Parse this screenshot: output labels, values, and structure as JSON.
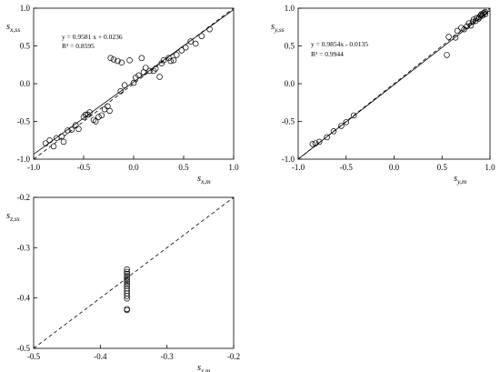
{
  "chart_data": [
    {
      "type": "scatter",
      "panel": "x",
      "xlabel": "s",
      "xlabel_sub": "x,m",
      "ylabel": "s",
      "ylabel_sub": "x,ss",
      "xlim": [
        -1.0,
        1.0
      ],
      "ylim": [
        -1.0,
        1.0
      ],
      "x_ticks": [
        "-1.0",
        "-0.5",
        "0.0",
        "0.5",
        "1.0"
      ],
      "y_ticks": [
        "-1.0",
        "-0.5",
        "0.0",
        "0.5",
        "1.0"
      ],
      "annotation_lines": [
        "y = 0.9581  x + 0.0236",
        "R² = 0.8595"
      ],
      "regression": {
        "slope": 0.9581,
        "intercept": 0.0236
      },
      "identity_line": true,
      "points": [
        [
          -0.88,
          -0.79
        ],
        [
          -0.84,
          -0.75
        ],
        [
          -0.8,
          -0.83
        ],
        [
          -0.77,
          -0.72
        ],
        [
          -0.72,
          -0.7
        ],
        [
          -0.7,
          -0.77
        ],
        [
          -0.66,
          -0.62
        ],
        [
          -0.62,
          -0.61
        ],
        [
          -0.58,
          -0.55
        ],
        [
          -0.55,
          -0.6
        ],
        [
          -0.5,
          -0.44
        ],
        [
          -0.48,
          -0.41
        ],
        [
          -0.46,
          -0.41
        ],
        [
          -0.44,
          -0.38
        ],
        [
          -0.4,
          -0.48
        ],
        [
          -0.38,
          -0.5
        ],
        [
          -0.35,
          -0.44
        ],
        [
          -0.32,
          -0.42
        ],
        [
          -0.29,
          -0.34
        ],
        [
          -0.26,
          -0.3
        ],
        [
          -0.24,
          -0.36
        ],
        [
          -0.23,
          0.34
        ],
        [
          -0.2,
          0.32
        ],
        [
          -0.16,
          0.3
        ],
        [
          -0.13,
          -0.1
        ],
        [
          -0.12,
          0.28
        ],
        [
          -0.09,
          -0.02
        ],
        [
          -0.04,
          0.31
        ],
        [
          0.0,
          0.01
        ],
        [
          0.02,
          0.08
        ],
        [
          0.05,
          0.11
        ],
        [
          0.08,
          0.34
        ],
        [
          0.1,
          0.15
        ],
        [
          0.12,
          0.21
        ],
        [
          0.16,
          0.17
        ],
        [
          0.2,
          0.17
        ],
        [
          0.22,
          0.2
        ],
        [
          0.26,
          0.09
        ],
        [
          0.28,
          0.27
        ],
        [
          0.3,
          0.31
        ],
        [
          0.35,
          0.34
        ],
        [
          0.37,
          0.3
        ],
        [
          0.4,
          0.31
        ],
        [
          0.43,
          0.38
        ],
        [
          0.48,
          0.44
        ],
        [
          0.52,
          0.48
        ],
        [
          0.57,
          0.56
        ],
        [
          0.62,
          0.53
        ],
        [
          0.68,
          0.63
        ],
        [
          0.76,
          0.72
        ]
      ]
    },
    {
      "type": "scatter",
      "panel": "y",
      "xlabel": "s",
      "xlabel_sub": "y,m",
      "ylabel": "s",
      "ylabel_sub": "y,ss",
      "xlim": [
        -1.0,
        1.0
      ],
      "ylim": [
        -1.0,
        1.0
      ],
      "x_ticks": [
        "-1.0",
        "-0.5",
        "0.0",
        "0.5",
        "1.0"
      ],
      "y_ticks": [
        "-1.0",
        "-0.5",
        "0.0",
        "0.5",
        "1.0"
      ],
      "annotation_lines": [
        "y = 0.9854x  - 0.0135",
        "R² = 0.9944"
      ],
      "regression": {
        "slope": 0.9854,
        "intercept": -0.0135
      },
      "identity_line": true,
      "points": [
        [
          -0.85,
          -0.8
        ],
        [
          -0.82,
          -0.79
        ],
        [
          -0.78,
          -0.77
        ],
        [
          -0.7,
          -0.71
        ],
        [
          -0.63,
          -0.63
        ],
        [
          -0.55,
          -0.56
        ],
        [
          -0.5,
          -0.51
        ],
        [
          -0.42,
          -0.42
        ],
        [
          0.55,
          0.38
        ],
        [
          0.57,
          0.62
        ],
        [
          0.64,
          0.61
        ],
        [
          0.66,
          0.7
        ],
        [
          0.7,
          0.74
        ],
        [
          0.73,
          0.72
        ],
        [
          0.76,
          0.76
        ],
        [
          0.78,
          0.8
        ],
        [
          0.8,
          0.77
        ],
        [
          0.82,
          0.82
        ],
        [
          0.83,
          0.85
        ],
        [
          0.85,
          0.83
        ],
        [
          0.86,
          0.87
        ],
        [
          0.88,
          0.86
        ],
        [
          0.89,
          0.88
        ],
        [
          0.9,
          0.9
        ],
        [
          0.91,
          0.92
        ],
        [
          0.92,
          0.9
        ],
        [
          0.93,
          0.93
        ],
        [
          0.94,
          0.94
        ],
        [
          0.95,
          0.92
        ],
        [
          0.95,
          0.95
        ]
      ]
    },
    {
      "type": "scatter",
      "panel": "z",
      "xlabel": "s",
      "xlabel_sub": "z,m",
      "ylabel": "s",
      "ylabel_sub": "z,ss",
      "xlim": [
        -0.5,
        -0.2
      ],
      "ylim": [
        -0.5,
        -0.2
      ],
      "x_ticks": [
        "-0.5",
        "-0.4",
        "-0.3",
        "-0.2"
      ],
      "y_ticks": [
        "-0.5",
        "-0.4",
        "-0.3",
        "-0.2"
      ],
      "annotation_lines": [],
      "identity_line": true,
      "points": [
        [
          -0.36,
          -0.343
        ],
        [
          -0.36,
          -0.348
        ],
        [
          -0.36,
          -0.352
        ],
        [
          -0.36,
          -0.356
        ],
        [
          -0.36,
          -0.36
        ],
        [
          -0.36,
          -0.364
        ],
        [
          -0.36,
          -0.368
        ],
        [
          -0.36,
          -0.372
        ],
        [
          -0.36,
          -0.376
        ],
        [
          -0.36,
          -0.381
        ],
        [
          -0.36,
          -0.386
        ],
        [
          -0.36,
          -0.391
        ],
        [
          -0.36,
          -0.396
        ],
        [
          -0.36,
          -0.401
        ],
        [
          -0.36,
          -0.422
        ],
        [
          -0.36,
          -0.424
        ]
      ]
    }
  ]
}
